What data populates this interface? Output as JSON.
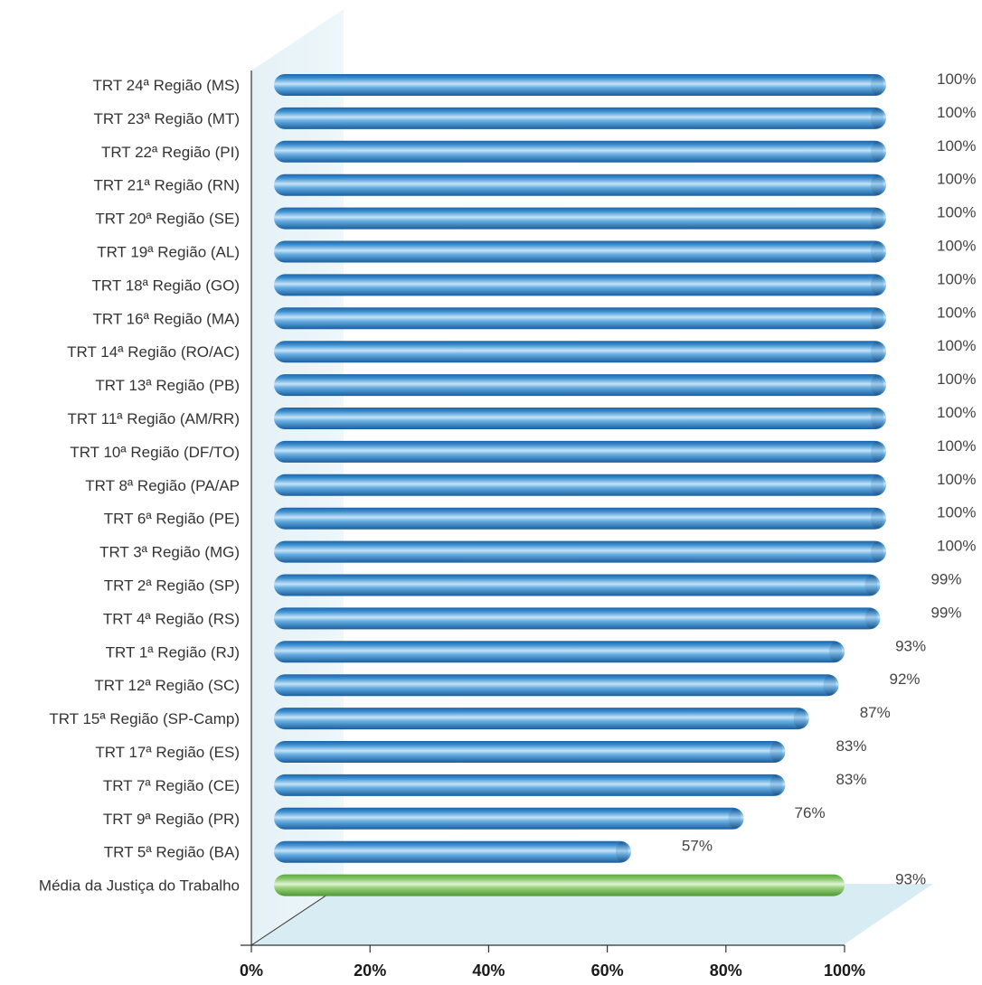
{
  "chart_data": {
    "type": "bar",
    "orientation": "horizontal",
    "title": "",
    "xlabel": "",
    "ylabel": "",
    "xlim": [
      0,
      100
    ],
    "x_ticks": [
      "0%",
      "20%",
      "40%",
      "60%",
      "80%",
      "100%"
    ],
    "grid": false,
    "legend": "none",
    "categories": [
      "TRT 24ª Região (MS)",
      "TRT 23ª Região (MT)",
      "TRT 22ª Região (PI)",
      "TRT 21ª Região (RN)",
      "TRT 20ª Região (SE)",
      "TRT 19ª Região (AL)",
      "TRT 18ª Região (GO)",
      "TRT 16ª Região (MA)",
      "TRT 14ª Região (RO/AC)",
      "TRT 13ª Região (PB)",
      "TRT 11ª Região (AM/RR)",
      "TRT 10ª Região (DF/TO)",
      "TRT 8ª Região (PA/AP",
      "TRT 6ª Região (PE)",
      "TRT 3ª Região (MG)",
      "TRT 2ª Região (SP)",
      "TRT 4ª Região (RS)",
      "TRT 1ª Região (RJ)",
      "TRT 12ª Região (SC)",
      "TRT 15ª Região (SP-Camp)",
      "TRT 17ª Região (ES)",
      "TRT 7ª Região (CE)",
      "TRT 9ª Região (PR)",
      "TRT 5ª Região (BA)",
      "Média da Justiça do Trabalho"
    ],
    "values": [
      100,
      100,
      100,
      100,
      100,
      100,
      100,
      100,
      100,
      100,
      100,
      100,
      100,
      100,
      100,
      99,
      99,
      93,
      92,
      87,
      83,
      83,
      76,
      57,
      93
    ],
    "value_labels": [
      "100%",
      "100%",
      "100%",
      "100%",
      "100%",
      "100%",
      "100%",
      "100%",
      "100%",
      "100%",
      "100%",
      "100%",
      "100%",
      "100%",
      "100%",
      "99%",
      "99%",
      "93%",
      "92%",
      "87%",
      "83%",
      "83%",
      "76%",
      "57%",
      "93%"
    ],
    "colors": {
      "region_bar": "#2f86c8",
      "average_bar": "#7cbf5a",
      "floor_panel": "#d8ecf3"
    }
  }
}
